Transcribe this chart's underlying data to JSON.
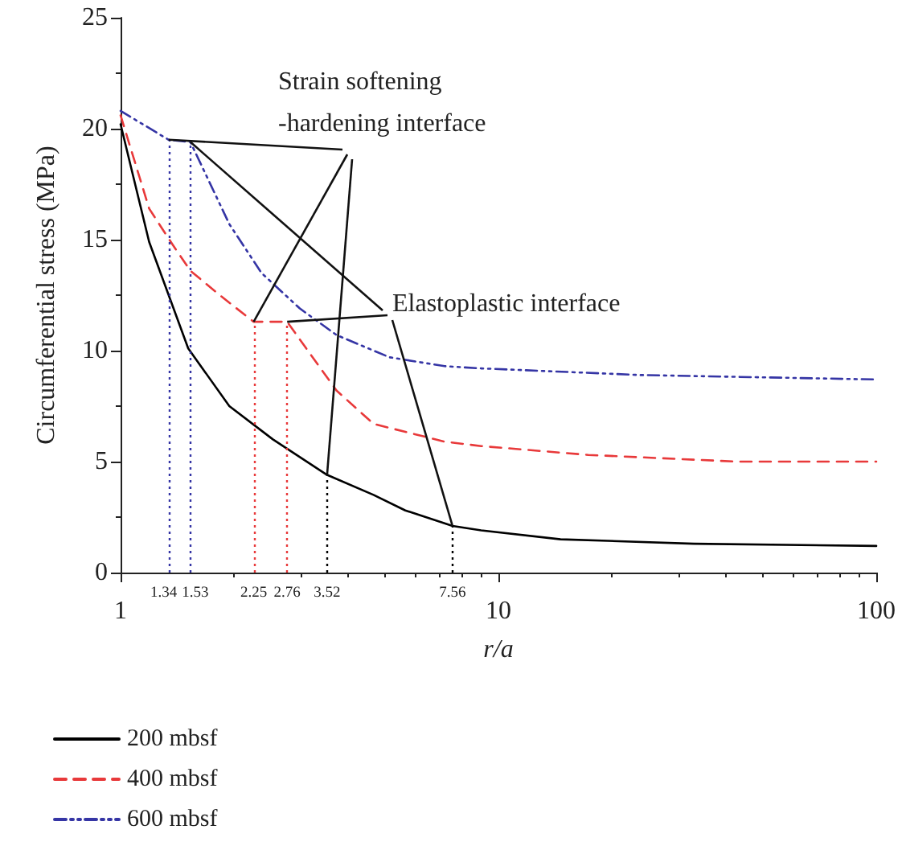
{
  "chart_data": {
    "type": "line",
    "xlabel": "r/a",
    "ylabel": "Circumferential stress (MPa)",
    "log": "x",
    "xlim": [
      1,
      100
    ],
    "xticks": [
      1,
      10,
      100
    ],
    "ylim": [
      0,
      25
    ],
    "yticks": [
      0,
      5,
      10,
      15,
      20,
      25
    ],
    "grid": false,
    "legend": "bottom left",
    "marker": "none",
    "series": [
      {
        "name": "200 mbsf",
        "color": "#000000",
        "line_style": "solid",
        "x": [
          1,
          1.19,
          1.51,
          1.94,
          2.53,
          3.52,
          4.67,
          5.67,
          7.56,
          9,
          14.6,
          32.9,
          100
        ],
        "values": [
          20.2,
          14.9,
          10.1,
          7.5,
          6.0,
          4.4,
          3.5,
          2.8,
          2.1,
          1.9,
          1.5,
          1.3,
          1.2
        ]
      },
      {
        "name": "400 mbsf",
        "color": "#e8393a",
        "line_style": "dashed",
        "x": [
          1,
          1.19,
          1.37,
          1.53,
          1.83,
          2.25,
          2.76,
          3.16,
          3.73,
          4.67,
          7.2,
          9,
          17.3,
          42.8,
          100
        ],
        "values": [
          20.6,
          16.4,
          14.8,
          13.6,
          12.5,
          11.3,
          11.3,
          9.9,
          8.2,
          6.7,
          5.9,
          5.7,
          5.3,
          5.0,
          5.0
        ]
      },
      {
        "name": "600 mbsf",
        "color": "#3535a5",
        "line_style": "dashdot",
        "x": [
          1,
          1.34,
          1.53,
          1.94,
          2.36,
          2.98,
          3.73,
          5.15,
          7.2,
          9,
          23.8,
          100
        ],
        "values": [
          20.8,
          19.5,
          19.4,
          15.7,
          13.5,
          11.9,
          10.7,
          9.7,
          9.3,
          9.2,
          8.9,
          8.7
        ]
      }
    ],
    "ref_lines": [
      {
        "axis": "x",
        "value": 1.34,
        "label": "1.34",
        "color": "#3535a5",
        "line_style": "dotted"
      },
      {
        "axis": "x",
        "value": 1.53,
        "label": "1.53",
        "color": "#3535a5",
        "line_style": "dotted"
      },
      {
        "axis": "x",
        "value": 2.25,
        "label": "2.25",
        "color": "#e8393a",
        "line_style": "dotted"
      },
      {
        "axis": "x",
        "value": 2.76,
        "label": "2.76",
        "color": "#e8393a",
        "line_style": "dotted"
      },
      {
        "axis": "x",
        "value": 3.52,
        "label": "3.52",
        "color": "#000000",
        "line_style": "dotted"
      },
      {
        "axis": "x",
        "value": 7.56,
        "label": "7.56",
        "color": "#000000",
        "line_style": "dotted"
      }
    ],
    "annotations": [
      {
        "text": "Strain softening\n-hardening interface",
        "x": 1.34,
        "y": 19.5
      },
      {
        "text": "Elastoplastic interface",
        "x": 1.53,
        "y": 19.4
      }
    ]
  }
}
